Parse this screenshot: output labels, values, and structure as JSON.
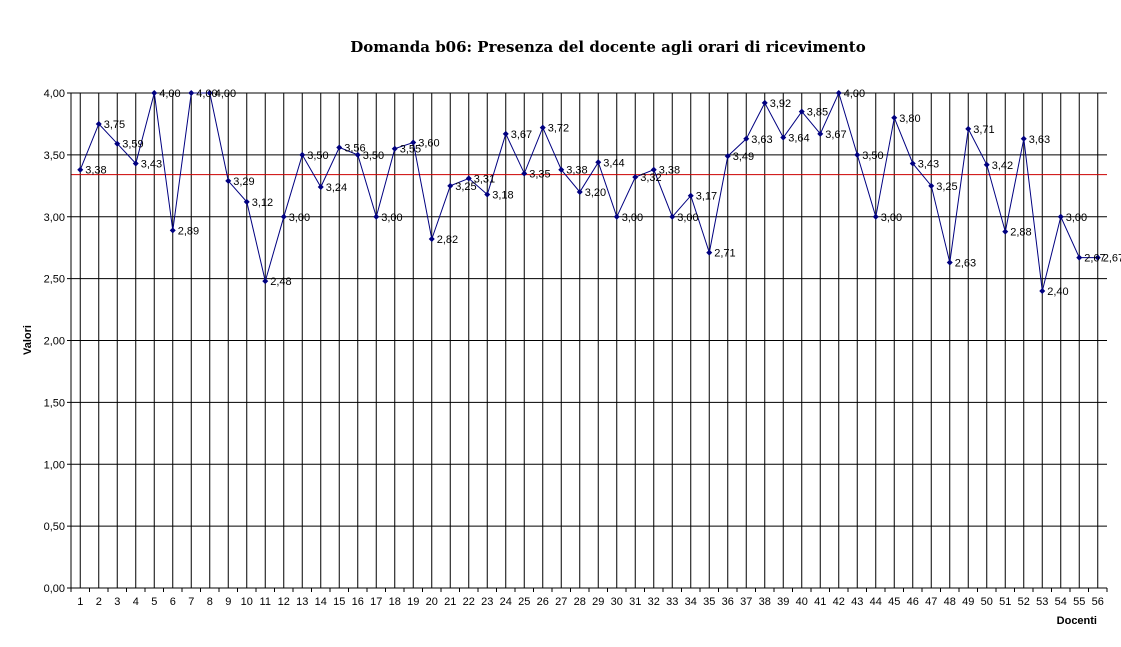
{
  "chart_data": {
    "type": "line",
    "title": "Domanda b06: Presenza del docente agli orari di ricevimento",
    "xlabel": "Docenti",
    "ylabel": "Valori",
    "ylim": [
      0,
      4
    ],
    "y_ticks": [
      "0,00",
      "0,50",
      "1,00",
      "1,50",
      "2,00",
      "2,50",
      "3,00",
      "3,50",
      "4,00"
    ],
    "categories": [
      "1",
      "2",
      "3",
      "4",
      "5",
      "6",
      "7",
      "8",
      "9",
      "10",
      "11",
      "12",
      "13",
      "14",
      "15",
      "16",
      "17",
      "18",
      "19",
      "20",
      "21",
      "22",
      "23",
      "24",
      "25",
      "26",
      "27",
      "28",
      "29",
      "30",
      "31",
      "32",
      "33",
      "34",
      "35",
      "36",
      "37",
      "38",
      "39",
      "40",
      "41",
      "42",
      "43",
      "44",
      "45",
      "46",
      "47",
      "48",
      "49",
      "50",
      "51",
      "52",
      "53",
      "54",
      "55",
      "56"
    ],
    "values": [
      3.38,
      3.75,
      3.59,
      3.43,
      4.0,
      2.89,
      4.0,
      4.0,
      3.29,
      3.12,
      2.48,
      3.0,
      3.5,
      3.24,
      3.56,
      3.5,
      3.0,
      3.55,
      3.6,
      2.82,
      3.25,
      3.31,
      3.18,
      3.67,
      3.35,
      3.72,
      3.38,
      3.2,
      3.44,
      3.0,
      3.32,
      3.38,
      3.0,
      3.17,
      2.71,
      3.49,
      3.63,
      3.92,
      3.64,
      3.85,
      3.67,
      4.0,
      3.5,
      3.0,
      3.8,
      3.43,
      3.25,
      2.63,
      3.71,
      3.42,
      2.88,
      3.63,
      2.4,
      3.0,
      2.67,
      2.67
    ],
    "data_labels": [
      "3,38",
      "3,75",
      "3,59",
      "3,43",
      "4,00",
      "2,89",
      "4,00",
      "4,00",
      "3,29",
      "3,12",
      "2,48",
      "3,00",
      "3,50",
      "3,24",
      "3,56",
      "3,50",
      "3,00",
      "3,55",
      "3,60",
      "2,82",
      "3,25",
      "3,31",
      "3,18",
      "3,67",
      "3,35",
      "3,72",
      "3,38",
      "3,20",
      "3,44",
      "3,00",
      "3,32",
      "3,38",
      "3,00",
      "3,17",
      "2,71",
      "3,49",
      "3,63",
      "3,92",
      "3,64",
      "3,85",
      "3,67",
      "4,00",
      "3,50",
      "3,00",
      "3,80",
      "3,43",
      "3,25",
      "2,63",
      "3,71",
      "3,42",
      "2,88",
      "3,63",
      "2,40",
      "3,00",
      "2,67",
      "2,67"
    ],
    "mean_line": 3.34,
    "grid": true,
    "series_color": "#000080",
    "mean_line_color": "#cc0000"
  }
}
